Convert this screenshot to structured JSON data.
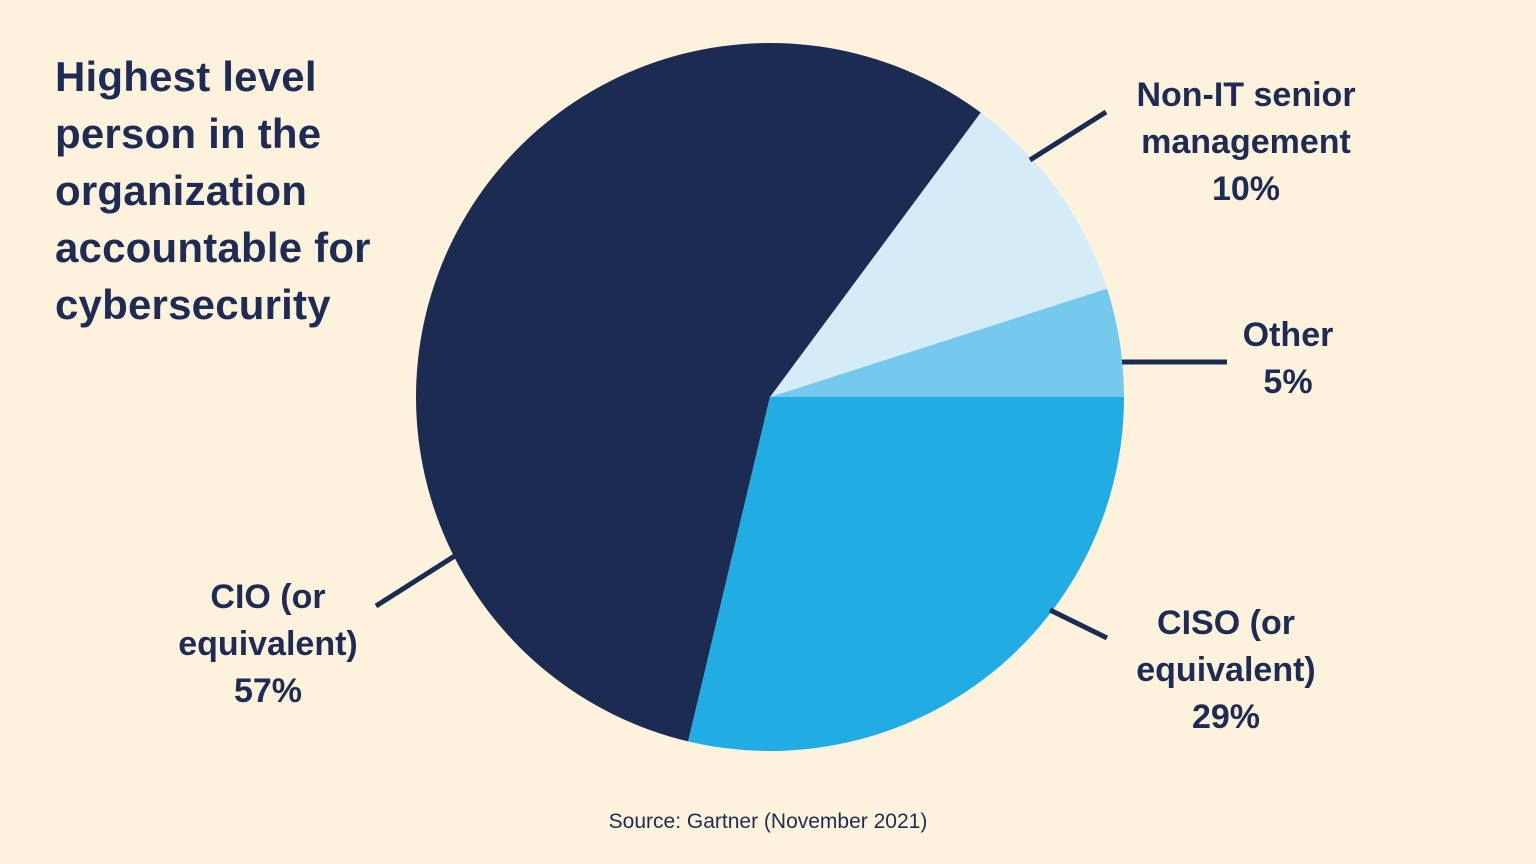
{
  "colors": {
    "background": "#FDF3DC",
    "text": "#1E2C55",
    "leader_line": "#1C2B52"
  },
  "title_lines": [
    "Highest level",
    "person in the",
    "organization",
    "accountable for",
    "cybersecurity"
  ],
  "source": "Source: Gartner (November 2021)",
  "chart_data": {
    "type": "pie",
    "title": "Highest level person in the organization accountable for cybersecurity",
    "slices": [
      {
        "label": "Other",
        "value": 5,
        "percent_label": "5%",
        "color": "#74C9ED"
      },
      {
        "label": "Non-IT senior management",
        "value": 10,
        "percent_label": "10%",
        "color": "#D3ECF8"
      },
      {
        "label": "CIO (or equivalent)",
        "value": 57,
        "percent_label": "57%",
        "color": "#1C2B52"
      },
      {
        "label": "CISO (or equivalent)",
        "value": 29,
        "percent_label": "29%",
        "color": "#21ACE4"
      }
    ],
    "layout": {
      "start_angle_deg": 0,
      "direction": "ccw",
      "center": [
        770,
        397
      ],
      "radius": 354,
      "legend": "callout-labels"
    },
    "source": "Source: Gartner (November 2021)"
  },
  "labels": {
    "non_it": {
      "lines": [
        "Non-IT senior",
        "management",
        "10%"
      ]
    },
    "other": {
      "lines": [
        "Other",
        "5%"
      ]
    },
    "ciso": {
      "lines": [
        "CISO (or",
        "equivalent)",
        "29%"
      ]
    },
    "cio": {
      "lines": [
        "CIO (or",
        "equivalent)",
        "57%"
      ]
    }
  }
}
